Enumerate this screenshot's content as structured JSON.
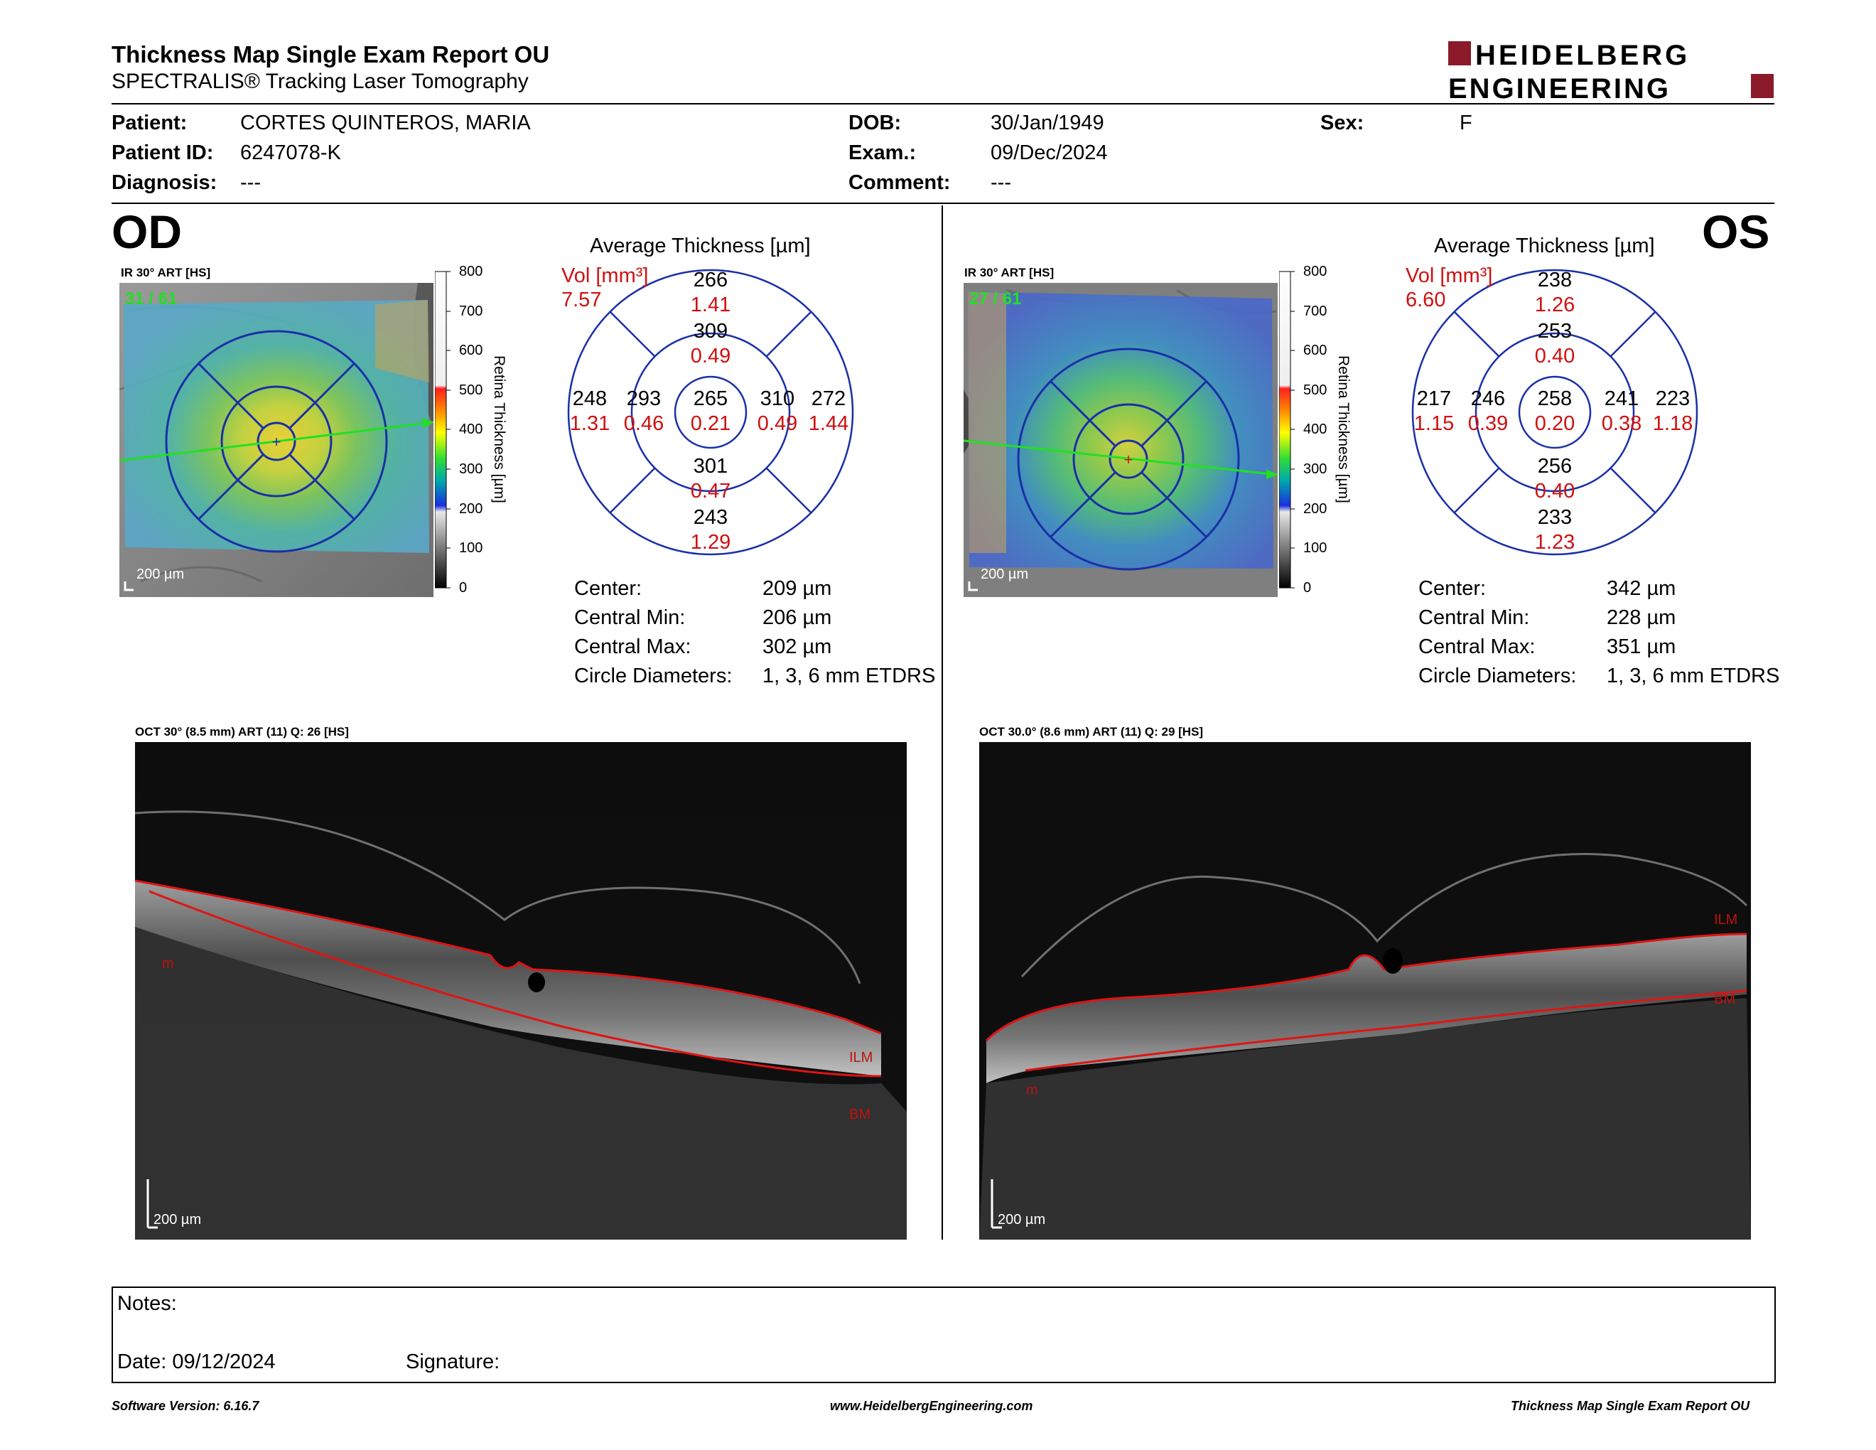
{
  "report": {
    "title": "Thickness Map Single Exam Report OU",
    "subtitle": "SPECTRALIS® Tracking Laser Tomography",
    "brand_line1": "HEIDELBERG",
    "brand_line2": "ENGINEERING",
    "brand_color": "#8b1a2b"
  },
  "patient": {
    "patient_label": "Patient:",
    "patient_value": "CORTES QUINTEROS, MARIA",
    "id_label": "Patient ID:",
    "id_value": "6247078-K",
    "diagnosis_label": "Diagnosis:",
    "diagnosis_value": "---",
    "dob_label": "DOB:",
    "dob_value": "30/Jan/1949",
    "exam_label": "Exam.:",
    "exam_value": "09/Dec/2024",
    "comment_label": "Comment:",
    "comment_value": "---",
    "sex_label": "Sex:",
    "sex_value": "F"
  },
  "od": {
    "eye_label": "OD",
    "ir_label": "IR 30° ART [HS]",
    "frame_counter": "31 / 61",
    "scale": "200 µm",
    "avg_title": "Average Thickness [µm]",
    "vol_label": "Vol [mm³]",
    "vol_value": "7.57",
    "center_thickness": "265",
    "center_volume": "0.21",
    "inner_superior": "309",
    "inner_superior_vol": "0.49",
    "inner_inferior": "301",
    "inner_inferior_vol": "0.47",
    "inner_left": "293",
    "inner_left_vol": "0.46",
    "inner_right": "310",
    "inner_right_vol": "0.49",
    "outer_superior": "266",
    "outer_superior_vol": "1.41",
    "outer_inferior": "243",
    "outer_inferior_vol": "1.29",
    "outer_left": "248",
    "outer_left_vol": "1.31",
    "outer_right": "272",
    "outer_right_vol": "1.44",
    "stats": {
      "center_label": "Center:",
      "center_value": "209 µm",
      "min_label": "Central Min:",
      "min_value": "206 µm",
      "max_label": "Central Max:",
      "max_value": "302 µm",
      "diam_label": "Circle Diameters:",
      "diam_value": "1, 3, 6 mm ETDRS"
    },
    "oct_label": "OCT 30° (8.5 mm) ART (11) Q: 26 [HS]",
    "oct_scale": "200 µm",
    "ilm_label": "ILM",
    "bm_label": "BM",
    "m_label": "m"
  },
  "os": {
    "eye_label": "OS",
    "ir_label": "IR 30° ART [HS]",
    "frame_counter": "27 / 61",
    "scale": "200 µm",
    "avg_title": "Average Thickness [µm]",
    "vol_label": "Vol [mm³]",
    "vol_value": "6.60",
    "center_thickness": "258",
    "center_volume": "0.20",
    "inner_superior": "253",
    "inner_superior_vol": "0.40",
    "inner_inferior": "256",
    "inner_inferior_vol": "0.40",
    "inner_left": "246",
    "inner_left_vol": "0.39",
    "inner_right": "241",
    "inner_right_vol": "0.38",
    "outer_superior": "238",
    "outer_superior_vol": "1.26",
    "outer_inferior": "233",
    "outer_inferior_vol": "1.23",
    "outer_left": "217",
    "outer_left_vol": "1.15",
    "outer_right": "223",
    "outer_right_vol": "1.18",
    "stats": {
      "center_label": "Center:",
      "center_value": "342 µm",
      "min_label": "Central Min:",
      "min_value": "228 µm",
      "max_label": "Central Max:",
      "max_value": "351 µm",
      "diam_label": "Circle Diameters:",
      "diam_value": "1, 3, 6 mm ETDRS"
    },
    "oct_label": "OCT 30.0° (8.6 mm) ART (11) Q: 29 [HS]",
    "oct_scale": "200 µm",
    "ilm_label": "ILM",
    "bm_label": "BM",
    "m_label": "m"
  },
  "colorbar": {
    "ticks": [
      "800",
      "700",
      "600",
      "500",
      "400",
      "300",
      "200",
      "100",
      "0"
    ],
    "axis_label": "Retina Thickness [µm]"
  },
  "notes": {
    "notes_label": "Notes:",
    "date_label": "Date: 09/12/2024",
    "signature_label": "Signature:"
  },
  "footer": {
    "software": "Software Version: 6.16.7",
    "website": "www.HeidelbergEngineering.com",
    "report_name": "Thickness Map Single Exam Report OU"
  }
}
